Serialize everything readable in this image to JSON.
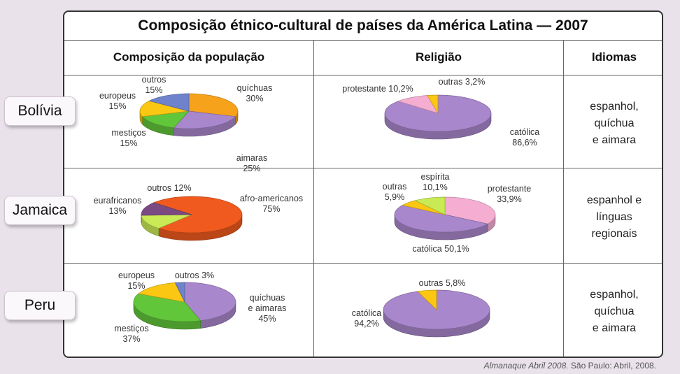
{
  "title": "Composição étnico-cultural de países da América Latina — 2007",
  "headers": {
    "populacao": "Composição da população",
    "religiao": "Religião",
    "idiomas": "Idiomas"
  },
  "source": {
    "publication": "Almanaque Abril 2008.",
    "rest": " São Paulo: Abril, 2008."
  },
  "colors": {
    "purple": "#a987cc",
    "orange": "#f7a21b",
    "green": "#62c63a",
    "yellow": "#fbc712",
    "blue": "#6f82cc",
    "red": "#f05a1e",
    "lime": "#c9ea55",
    "darkpurple": "#7b4a83",
    "pink": "#f5aed2"
  },
  "rows": [
    {
      "country": "Bolívia",
      "languages": [
        "espanhol,",
        "quíchua",
        "e aimara"
      ]
    },
    {
      "country": "Jamaica",
      "languages": [
        "espanhol e",
        "línguas",
        "regionais"
      ]
    },
    {
      "country": "Peru",
      "languages": [
        "espanhol,",
        "quíchua",
        "e aimara"
      ]
    }
  ],
  "chart_data": [
    {
      "type": "pie",
      "country": "Bolívia",
      "topic": "Composição da população",
      "slices": [
        {
          "label": "quíchuas",
          "value": 30,
          "value_label": "30%",
          "color": "orange"
        },
        {
          "label": "aimaras",
          "value": 25,
          "value_label": "25%",
          "color": "purple"
        },
        {
          "label": "mestiços",
          "value": 15,
          "value_label": "15%",
          "color": "green"
        },
        {
          "label": "europeus",
          "value": 15,
          "value_label": "15%",
          "color": "yellow"
        },
        {
          "label": "outros",
          "value": 15,
          "value_label": "15%",
          "color": "blue"
        }
      ]
    },
    {
      "type": "pie",
      "country": "Bolívia",
      "topic": "Religião",
      "slices": [
        {
          "label": "católica",
          "value": 86.6,
          "value_label": "86,6%",
          "color": "purple"
        },
        {
          "label": "protestante",
          "value": 10.2,
          "value_label": "10,2%",
          "color": "pink"
        },
        {
          "label": "outras",
          "value": 3.2,
          "value_label": "3,2%",
          "color": "yellow"
        }
      ]
    },
    {
      "type": "pie",
      "country": "Jamaica",
      "topic": "Composição da população",
      "slices": [
        {
          "label": "afro-americanos",
          "value": 75,
          "value_label": "75%",
          "color": "red"
        },
        {
          "label": "eurafricanos",
          "value": 13,
          "value_label": "13%",
          "color": "lime"
        },
        {
          "label": "outros",
          "value": 12,
          "value_label": "12%",
          "color": "darkpurple"
        }
      ]
    },
    {
      "type": "pie",
      "country": "Jamaica",
      "topic": "Religião",
      "slices": [
        {
          "label": "protestante",
          "value": 33.9,
          "value_label": "33,9%",
          "color": "pink"
        },
        {
          "label": "católica",
          "value": 50.1,
          "value_label": "50,1%",
          "color": "purple"
        },
        {
          "label": "outras",
          "value": 5.9,
          "value_label": "5,9%",
          "color": "yellow"
        },
        {
          "label": "espírita",
          "value": 10.1,
          "value_label": "10,1%",
          "color": "lime"
        }
      ]
    },
    {
      "type": "pie",
      "country": "Peru",
      "topic": "Composição da população",
      "slices": [
        {
          "label": "quíchuas e aimaras",
          "value": 45,
          "value_label": "45%",
          "color": "purple"
        },
        {
          "label": "mestiços",
          "value": 37,
          "value_label": "37%",
          "color": "green"
        },
        {
          "label": "europeus",
          "value": 15,
          "value_label": "15%",
          "color": "yellow"
        },
        {
          "label": "outros",
          "value": 3,
          "value_label": "3%",
          "color": "blue"
        }
      ]
    },
    {
      "type": "pie",
      "country": "Peru",
      "topic": "Religião",
      "slices": [
        {
          "label": "católica",
          "value": 94.2,
          "value_label": "94,2%",
          "color": "purple"
        },
        {
          "label": "outras",
          "value": 5.8,
          "value_label": "5,8%",
          "color": "yellow"
        }
      ]
    }
  ]
}
